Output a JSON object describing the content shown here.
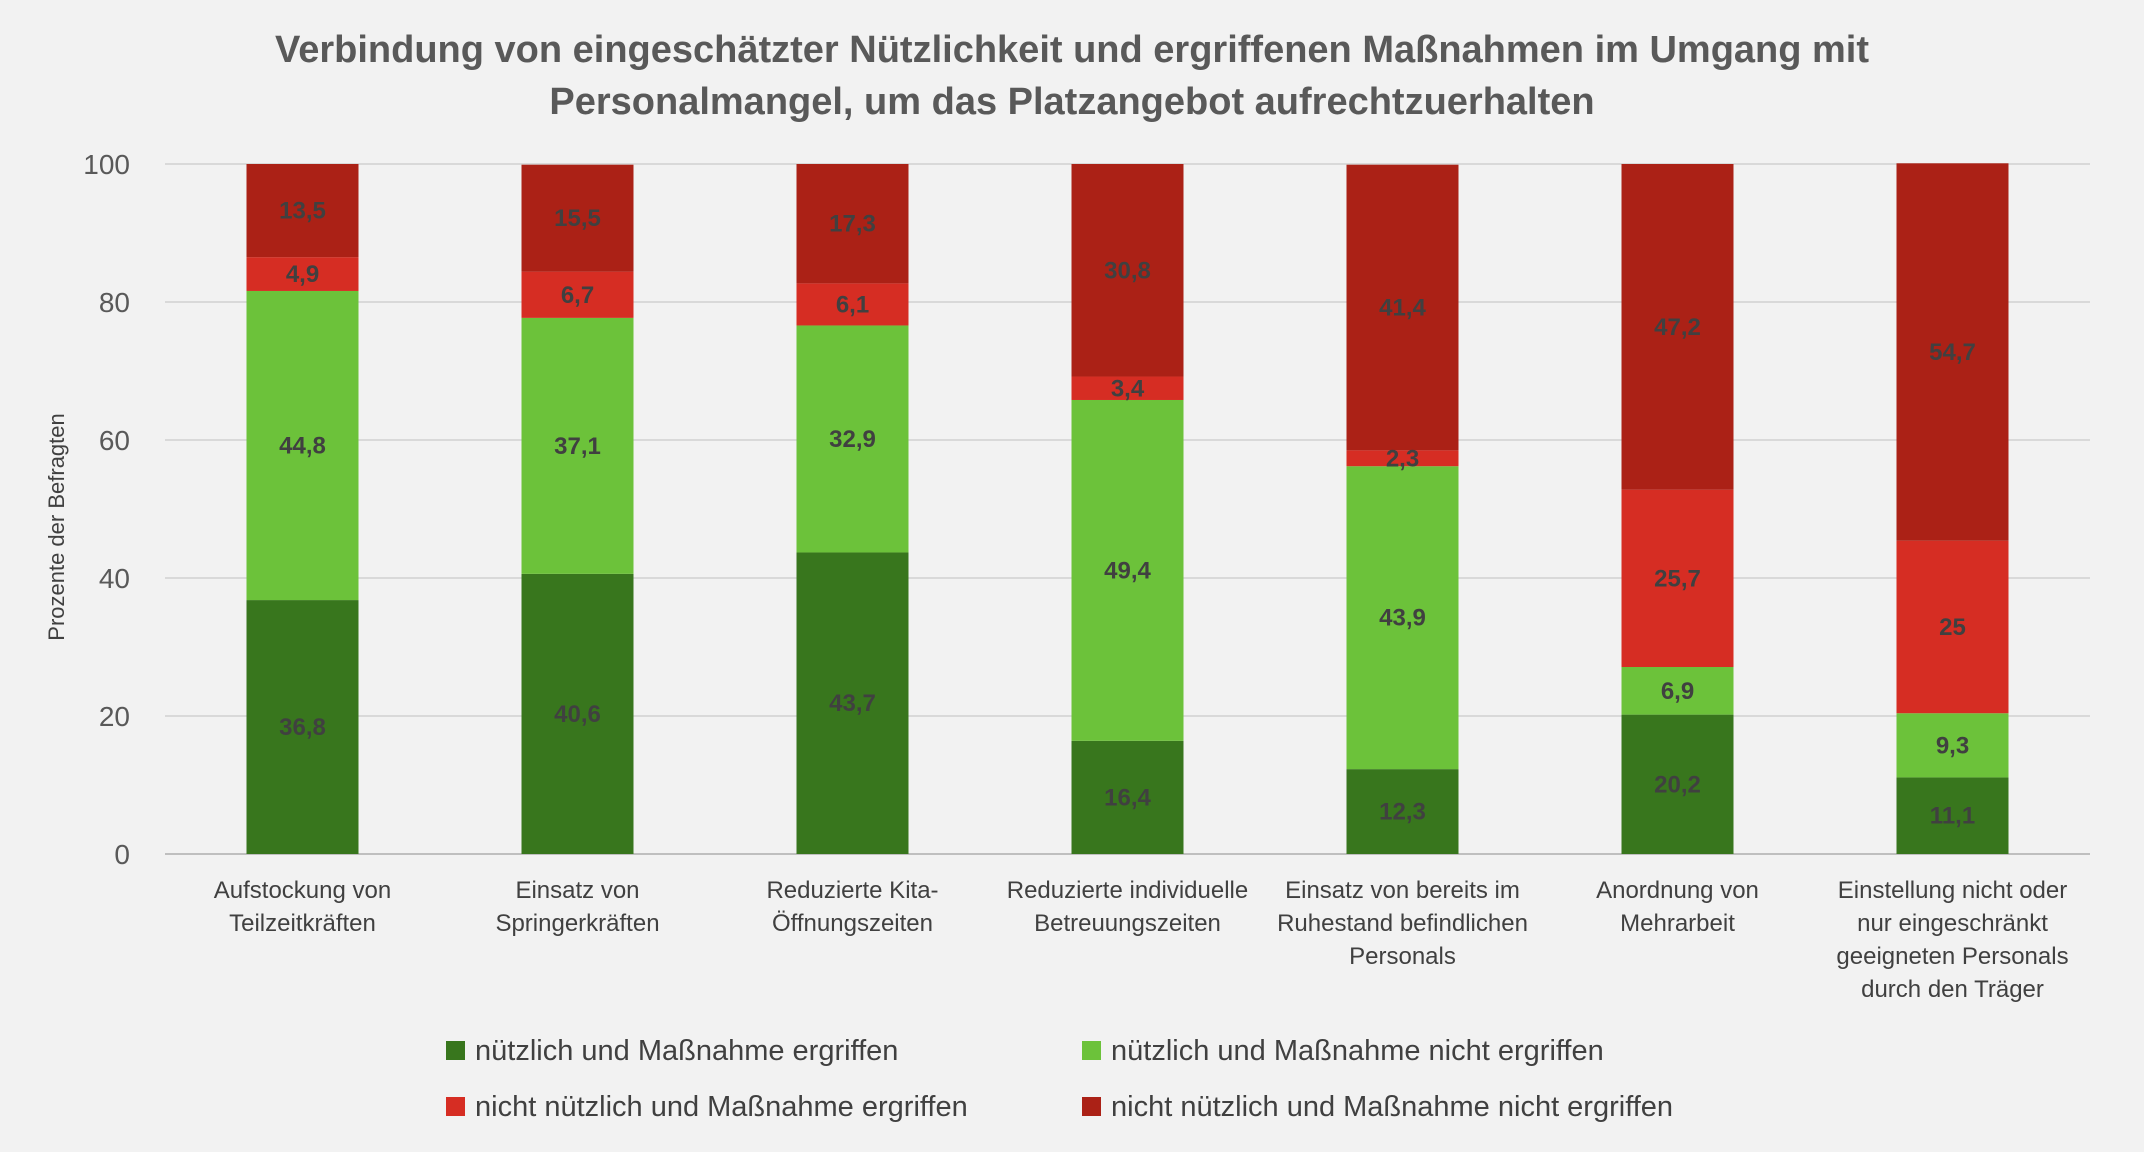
{
  "chart_data": {
    "type": "stacked-bar",
    "title_line1": "Verbindung von eingeschätzter Nützlichkeit und ergriffenen Maßnahmen im Umgang mit",
    "title_line2": "Personalmangel, um das Platzangebot aufrechtzuerhalten",
    "ylabel": "Prozente der Befragten",
    "ylim": [
      0,
      100
    ],
    "yticks": [
      "0",
      "20",
      "40",
      "60",
      "80",
      "100"
    ],
    "grid": true,
    "legend_position": "bottom",
    "categories": [
      [
        "Aufstockung von",
        "Teilzeitkräften"
      ],
      [
        "Einsatz von",
        "Springerkräften"
      ],
      [
        "Reduzierte Kita-",
        "Öffnungszeiten"
      ],
      [
        "Reduzierte individuelle",
        "Betreuungszeiten"
      ],
      [
        "Einsatz von bereits im",
        "Ruhestand befindlichen",
        "Personals"
      ],
      [
        "Anordnung von",
        "Mehrarbeit"
      ],
      [
        "Einstellung nicht oder",
        "nur eingeschränkt",
        "geeigneten Personals",
        "durch den Träger"
      ]
    ],
    "series": [
      {
        "name": "nützlich und Maßnahme ergriffen",
        "color": "#38761d",
        "values": [
          36.8,
          40.6,
          43.7,
          16.4,
          12.3,
          20.2,
          11.1
        ],
        "labels": [
          "36,8",
          "40,6",
          "43,7",
          "16,4",
          "12,3",
          "20,2",
          "11,1"
        ]
      },
      {
        "name": "nützlich und Maßnahme nicht ergriffen",
        "color": "#6cc23a",
        "values": [
          44.8,
          37.1,
          32.9,
          49.4,
          43.9,
          6.9,
          9.3
        ],
        "labels": [
          "44,8",
          "37,1",
          "32,9",
          "49,4",
          "43,9",
          "6,9",
          "9,3"
        ]
      },
      {
        "name": "nicht nützlich und Maßnahme ergriffen",
        "color": "#d62d23",
        "values": [
          4.9,
          6.7,
          6.1,
          3.4,
          2.3,
          25.7,
          25
        ],
        "labels": [
          "4,9",
          "6,7",
          "6,1",
          "3,4",
          "2,3",
          "25,7",
          "25"
        ]
      },
      {
        "name": "nicht nützlich und Maßnahme nicht ergriffen",
        "color": "#ab2116",
        "values": [
          13.5,
          15.5,
          17.3,
          30.8,
          41.4,
          47.2,
          54.7
        ],
        "labels": [
          "13,5",
          "15,5",
          "17,3",
          "30,8",
          "41,4",
          "47,2",
          "54,7"
        ]
      }
    ]
  }
}
